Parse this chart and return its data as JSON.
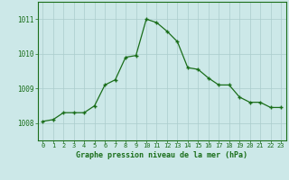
{
  "hours": [
    0,
    1,
    2,
    3,
    4,
    5,
    6,
    7,
    8,
    9,
    10,
    11,
    12,
    13,
    14,
    15,
    16,
    17,
    18,
    19,
    20,
    21,
    22,
    23
  ],
  "pressure": [
    1008.05,
    1008.1,
    1008.3,
    1008.3,
    1008.3,
    1008.5,
    1009.1,
    1009.25,
    1009.9,
    1009.95,
    1011.0,
    1010.9,
    1010.65,
    1010.35,
    1009.6,
    1009.55,
    1009.3,
    1009.1,
    1009.1,
    1008.75,
    1008.6,
    1008.6,
    1008.45,
    1008.45
  ],
  "line_color": "#1a6e1a",
  "marker": "+",
  "bg_color": "#cce8e8",
  "grid_color": "#aacccc",
  "xlabel": "Graphe pression niveau de la mer (hPa)",
  "xlabel_color": "#1a6e1a",
  "tick_color": "#1a6e1a",
  "ylim_min": 1007.5,
  "ylim_max": 1011.5,
  "yticks": [
    1008,
    1009,
    1010,
    1011
  ],
  "figsize": [
    3.2,
    2.0
  ],
  "dpi": 100
}
